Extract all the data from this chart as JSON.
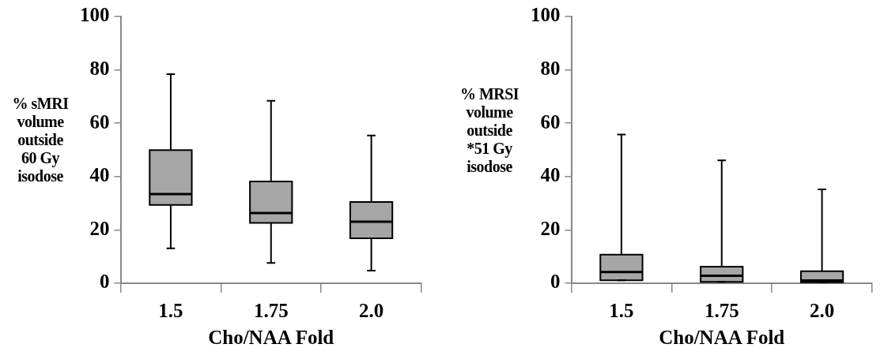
{
  "chart_data": [
    {
      "type": "box",
      "categories": [
        "1.5",
        "1.75",
        "2.0"
      ],
      "xlabel": "Cho/NAA Fold",
      "ylabel": "% sMRI volume outside 60 Gy isodose",
      "ylim": [
        0,
        100
      ],
      "yticks": [
        0,
        20,
        40,
        60,
        80,
        100
      ],
      "grid": false,
      "legend": false,
      "series": [
        {
          "color": "#a6a6a6",
          "boxes": [
            {
              "low": 13.1,
              "q1": 29.4,
              "median": 33.4,
              "q3": 49.9,
              "high": 78.4
            },
            {
              "low": 7.6,
              "q1": 22.6,
              "median": 26.3,
              "q3": 38.2,
              "high": 68.4
            },
            {
              "low": 4.7,
              "q1": 16.9,
              "median": 23.1,
              "q3": 30.5,
              "high": 55.4
            }
          ]
        }
      ]
    },
    {
      "type": "box",
      "categories": [
        "1.5",
        "1.75",
        "2.0"
      ],
      "xlabel": "Cho/NAA Fold",
      "ylabel": "% MRSI volume outside *51 Gy isodose",
      "ylim": [
        0,
        100
      ],
      "yticks": [
        0,
        20,
        40,
        60,
        80,
        100
      ],
      "grid": false,
      "legend": false,
      "series": [
        {
          "color": "#a6a6a6",
          "boxes": [
            {
              "low": 1.1,
              "q1": 1.1,
              "median": 4.2,
              "q3": 10.7,
              "high": 55.8
            },
            {
              "low": 0.5,
              "q1": 0.5,
              "median": 2.8,
              "q3": 6.2,
              "high": 46.1
            },
            {
              "low": 0.4,
              "q1": 0.4,
              "median": 1,
              "q3": 4.5,
              "high": 35.2
            }
          ]
        }
      ]
    }
  ]
}
